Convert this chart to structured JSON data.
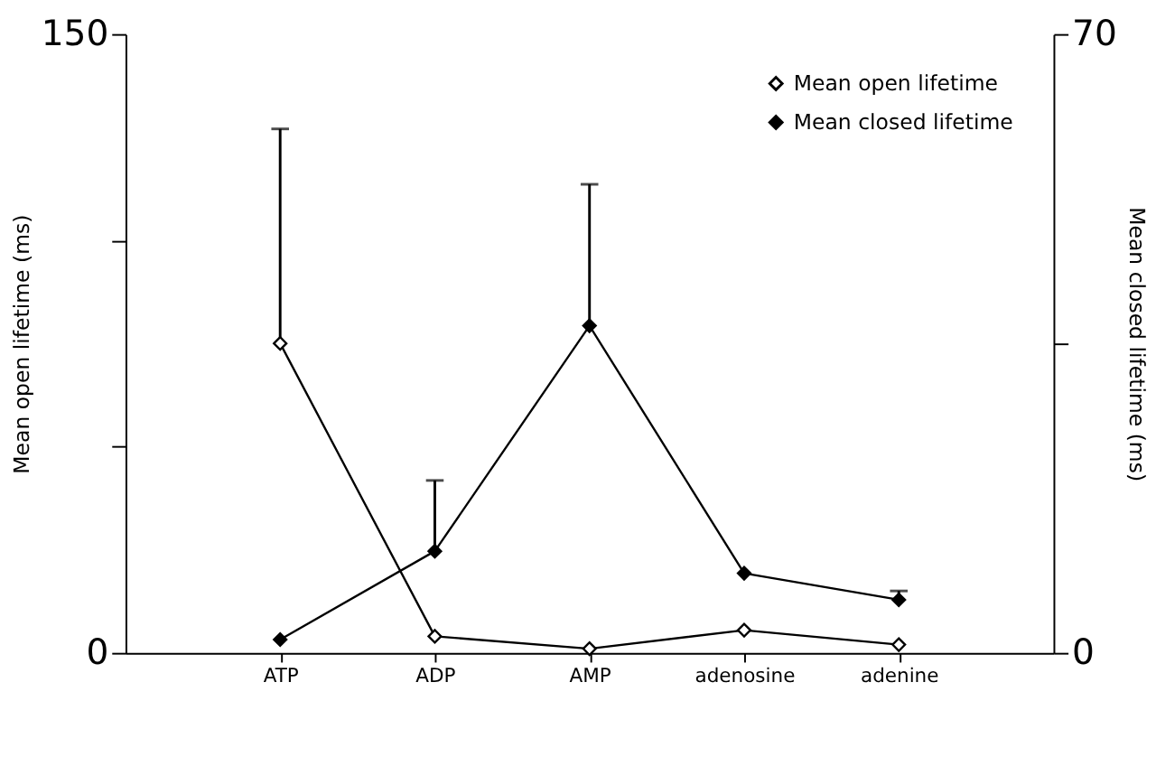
{
  "chart_data": {
    "type": "line",
    "ylabel": "Mean open lifetime (ms)",
    "y2label": "Mean closed lifetime (ms)",
    "categories": [
      "ATP",
      "ADP",
      "AMP",
      "adenosine",
      "adenine"
    ],
    "series": [
      {
        "name": "Mean open lifetime",
        "color": "#000000",
        "values": [
          75,
          4,
          1,
          5.5,
          2
        ],
        "errors": [
          [
            75,
            127
          ],
          null,
          null,
          null,
          null
        ]
      },
      {
        "name": "Mean closed lifetime",
        "color": "#000000",
        "axis": "y2",
        "values": [
          1.5,
          11.5,
          37,
          9,
          6
        ],
        "errors": [
          null,
          [
            11.5,
            19.5
          ],
          [
            37,
            53
          ],
          null,
          [
            6,
            7
          ]
        ]
      }
    ],
    "ylim": [
      0,
      150
    ],
    "yticks": [
      0,
      {
        "value": 50,
        "label": null
      },
      {
        "value": 100,
        "label": null
      },
      150
    ],
    "y2lim": [
      0,
      70
    ],
    "y2ticks": [
      0,
      {
        "value": 35,
        "label": null
      },
      70
    ],
    "marker": "diamond",
    "line_style": "solid",
    "legend": "top right",
    "grid": false
  }
}
